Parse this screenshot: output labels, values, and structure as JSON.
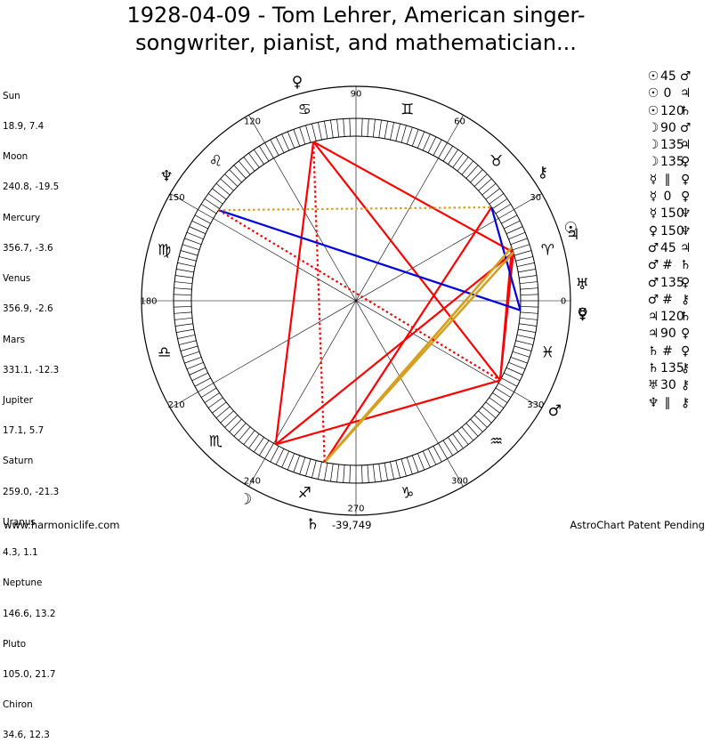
{
  "title": "1928-04-09 - Tom Lehrer, American singer-songwriter, pianist, and mathematician...",
  "title_lines": [
    "1928-04-09 - Tom Lehrer, American singer-",
    "songwriter, pianist, and mathematician..."
  ],
  "positions": [
    {
      "name": "Sun",
      "lon": 18.9,
      "lat": 7.4,
      "value": "18.9, 7.4"
    },
    {
      "name": "Moon",
      "lon": 240.8,
      "lat": -19.5,
      "value": "240.8, -19.5"
    },
    {
      "name": "Mercury",
      "lon": 356.7,
      "lat": -3.6,
      "value": "356.7, -3.6"
    },
    {
      "name": "Venus",
      "lon": 356.9,
      "lat": -2.6,
      "value": "356.9, -2.6"
    },
    {
      "name": "Mars",
      "lon": 331.1,
      "lat": -12.3,
      "value": "331.1, -12.3"
    },
    {
      "name": "Jupiter",
      "lon": 17.1,
      "lat": 5.7,
      "value": "17.1, 5.7"
    },
    {
      "name": "Saturn",
      "lon": 259.0,
      "lat": -21.3,
      "value": "259.0, -21.3"
    },
    {
      "name": "Uranus",
      "lon": 4.3,
      "lat": 1.1,
      "value": "4.3, 1.1"
    },
    {
      "name": "Neptune",
      "lon": 146.6,
      "lat": 13.2,
      "value": "146.6, 13.2"
    },
    {
      "name": "Pluto",
      "lon": 105.0,
      "lat": 21.7,
      "value": "105.0, 21.7"
    },
    {
      "name": "Chiron",
      "lon": 34.6,
      "lat": 12.3,
      "value": "34.6, 12.3"
    }
  ],
  "aspects": [
    {
      "p1": "☉",
      "p1_name": "Sun",
      "angle": "45",
      "p2": "♂",
      "p2_name": "Mars"
    },
    {
      "p1": "☉",
      "p1_name": "Sun",
      "angle": "0",
      "p2": "♃",
      "p2_name": "Jupiter"
    },
    {
      "p1": "☉",
      "p1_name": "Sun",
      "angle": "120",
      "p2": "♄",
      "p2_name": "Saturn"
    },
    {
      "p1": "☽",
      "p1_name": "Moon",
      "angle": "90",
      "p2": "♂",
      "p2_name": "Mars"
    },
    {
      "p1": "☽",
      "p1_name": "Moon",
      "angle": "135",
      "p2": "♃",
      "p2_name": "Jupiter"
    },
    {
      "p1": "☽",
      "p1_name": "Moon",
      "angle": "135",
      "p2": "♀",
      "p2_name": "Venus"
    },
    {
      "p1": "☿",
      "p1_name": "Mercury",
      "angle": "∥",
      "p2": "♀",
      "p2_name": "Venus"
    },
    {
      "p1": "☿",
      "p1_name": "Mercury",
      "angle": "0",
      "p2": "♀",
      "p2_name": "Venus"
    },
    {
      "p1": "☿",
      "p1_name": "Mercury",
      "angle": "150",
      "p2": "♆",
      "p2_name": "Neptune"
    },
    {
      "p1": "♀",
      "p1_name": "Venus",
      "angle": "150",
      "p2": "♆",
      "p2_name": "Neptune"
    },
    {
      "p1": "♂",
      "p1_name": "Mars",
      "angle": "45",
      "p2": "♃",
      "p2_name": "Jupiter"
    },
    {
      "p1": "♂",
      "p1_name": "Mars",
      "angle": "#",
      "p2": "♄",
      "p2_name": "Saturn"
    },
    {
      "p1": "♂",
      "p1_name": "Mars",
      "angle": "135",
      "p2": "♀",
      "p2_name": "Venus"
    },
    {
      "p1": "♂",
      "p1_name": "Mars",
      "angle": "#",
      "p2": "⚷",
      "p2_name": "Chiron"
    },
    {
      "p1": "♃",
      "p1_name": "Jupiter",
      "angle": "120",
      "p2": "♄",
      "p2_name": "Saturn"
    },
    {
      "p1": "♃",
      "p1_name": "Jupiter",
      "angle": "90",
      "p2": "♀",
      "p2_name": "Venus"
    },
    {
      "p1": "♄",
      "p1_name": "Saturn",
      "angle": "#",
      "p2": "♀",
      "p2_name": "Venus"
    },
    {
      "p1": "♄",
      "p1_name": "Saturn",
      "angle": "135",
      "p2": "⚷",
      "p2_name": "Chiron"
    },
    {
      "p1": "♅",
      "p1_name": "Uranus",
      "angle": "30",
      "p2": "⚷",
      "p2_name": "Chiron"
    },
    {
      "p1": "♆",
      "p1_name": "Neptune",
      "angle": "∥",
      "p2": "⚷",
      "p2_name": "Chiron"
    }
  ],
  "wheel": {
    "degree_labels": [
      "0",
      "30",
      "60",
      "90",
      "120",
      "150",
      "180",
      "210",
      "240",
      "270",
      "300",
      "330"
    ],
    "signs": [
      {
        "name": "Aries",
        "glyph": "♈"
      },
      {
        "name": "Taurus",
        "glyph": "♉"
      },
      {
        "name": "Gemini",
        "glyph": "♊"
      },
      {
        "name": "Cancer",
        "glyph": "♋"
      },
      {
        "name": "Leo",
        "glyph": "♌"
      },
      {
        "name": "Virgo",
        "glyph": "♍"
      },
      {
        "name": "Libra",
        "glyph": "♎"
      },
      {
        "name": "Scorpio",
        "glyph": "♏"
      },
      {
        "name": "Sagittarius",
        "glyph": "♐"
      },
      {
        "name": "Capricorn",
        "glyph": "♑"
      },
      {
        "name": "Aquarius",
        "glyph": "♒"
      },
      {
        "name": "Pisces",
        "glyph": "♓"
      }
    ],
    "planets": [
      {
        "name": "Sun",
        "glyph": "☉",
        "lon": 18.9
      },
      {
        "name": "Moon",
        "glyph": "☽",
        "lon": 240.8
      },
      {
        "name": "Mercury",
        "glyph": "☿",
        "lon": 356.7
      },
      {
        "name": "Venus",
        "glyph": "♀",
        "lon": 356.9
      },
      {
        "name": "Mars",
        "glyph": "♂",
        "lon": 331.1
      },
      {
        "name": "Jupiter",
        "glyph": "♃",
        "lon": 17.1
      },
      {
        "name": "Saturn",
        "glyph": "♄",
        "lon": 259.0
      },
      {
        "name": "Uranus",
        "glyph": "♅",
        "lon": 4.3
      },
      {
        "name": "Neptune",
        "glyph": "♆",
        "lon": 146.6
      },
      {
        "name": "Pluto",
        "glyph": "♀",
        "lon": 105.0
      },
      {
        "name": "Chiron",
        "glyph": "⚷",
        "lon": 34.6
      }
    ],
    "aspect_lines": [
      {
        "a": "Sun",
        "b": "Mars",
        "color": "#ff0000",
        "style": "solid"
      },
      {
        "a": "Jupiter",
        "b": "Mars",
        "color": "#ff0000",
        "style": "solid"
      },
      {
        "a": "Moon",
        "b": "Mars",
        "color": "#ff0000",
        "style": "solid"
      },
      {
        "a": "Moon",
        "b": "Jupiter",
        "color": "#ff0000",
        "style": "solid"
      },
      {
        "a": "Moon",
        "b": "Pluto",
        "color": "#ff0000",
        "style": "solid"
      },
      {
        "a": "Mars",
        "b": "Pluto",
        "color": "#ff0000",
        "style": "solid"
      },
      {
        "a": "Jupiter",
        "b": "Pluto",
        "color": "#ff0000",
        "style": "solid"
      },
      {
        "a": "Sun",
        "b": "Saturn",
        "color": "#ff0000",
        "style": "solid"
      },
      {
        "a": "Saturn",
        "b": "Chiron",
        "color": "#ff0000",
        "style": "solid"
      },
      {
        "a": "Mercury",
        "b": "Neptune",
        "color": "#0000dd",
        "style": "solid"
      },
      {
        "a": "Chiron",
        "b": "Mercury",
        "color": "#0000dd",
        "style": "solid"
      },
      {
        "a": "Sun",
        "b": "Saturn",
        "color": "#d4a020",
        "style": "solid"
      },
      {
        "a": "Jupiter",
        "b": "Saturn",
        "color": "#d4a020",
        "style": "solid"
      },
      {
        "a": "Neptune",
        "b": "Chiron",
        "color": "#d4a020",
        "style": "dotted"
      },
      {
        "a": "Pluto",
        "b": "Saturn",
        "color": "#ff0000",
        "style": "dotted"
      },
      {
        "a": "Neptune",
        "b": "Mars",
        "color": "#ff0000",
        "style": "dotted"
      }
    ],
    "colors": {
      "hard": "#ff0000",
      "soft": "#0000dd",
      "minor": "#d4a020"
    }
  },
  "footer": {
    "left": "www.harmoniclife.com",
    "center": "-39,749",
    "right": "AstroChart Patent Pending"
  }
}
